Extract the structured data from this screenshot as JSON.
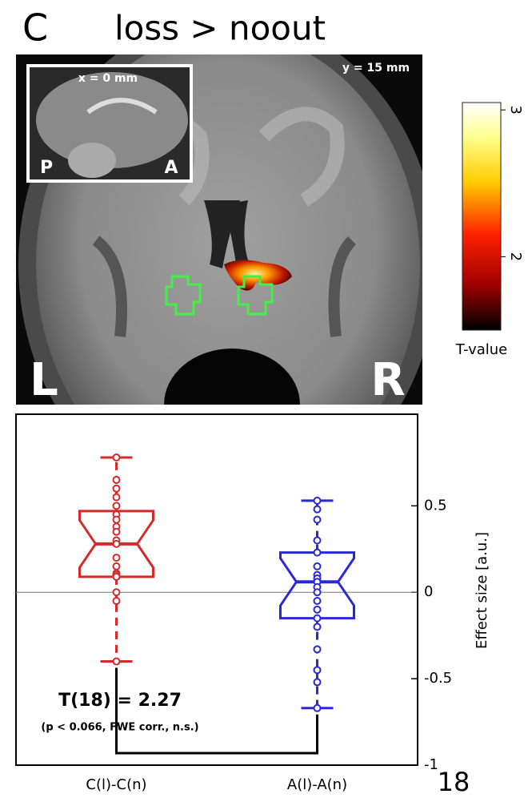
{
  "panel_label": "C",
  "title": "loss > noout",
  "brain_image": {
    "slice_label": "y = 15 mm",
    "inset": {
      "slice_label": "x = 0 mm",
      "left": "P",
      "right": "A"
    },
    "left": "L",
    "right": "R"
  },
  "colorbar": {
    "label": "T-value",
    "lim": [
      1.5,
      3.05
    ],
    "ticks": [
      2,
      3
    ]
  },
  "chart_data": {
    "type": "box",
    "categories": [
      "C(l)-C(n)",
      "A(l)-A(n)"
    ],
    "boxes": [
      {
        "color": "#d42a2a",
        "whisker_high": 0.78,
        "q3": 0.47,
        "median": 0.28,
        "q1": 0.09,
        "whisker_low": -0.4,
        "points": [
          0.78,
          0.65,
          0.6,
          0.55,
          0.5,
          0.45,
          0.42,
          0.38,
          0.35,
          0.3,
          0.28,
          0.2,
          0.15,
          0.11,
          0.1,
          0.09,
          0.0,
          -0.05,
          -0.4
        ]
      },
      {
        "color": "#2a2ad4",
        "whisker_high": 0.53,
        "q3": 0.23,
        "median": 0.06,
        "q1": -0.15,
        "whisker_low": -0.67,
        "points": [
          0.53,
          0.48,
          0.42,
          0.3,
          0.23,
          0.15,
          0.1,
          0.08,
          0.06,
          0.03,
          0.0,
          -0.05,
          -0.1,
          -0.15,
          -0.2,
          -0.33,
          -0.45,
          -0.52,
          -0.67
        ]
      }
    ],
    "ylabel": "Effect size [a.u.]",
    "ylim": [
      -1,
      1.03
    ],
    "yticks": [
      -1,
      -0.5,
      0,
      0.5
    ],
    "annotations": [
      "T(18) = 2.27",
      "(p < 0.066, FWE corr., n.s.)"
    ]
  },
  "page_number": "18"
}
